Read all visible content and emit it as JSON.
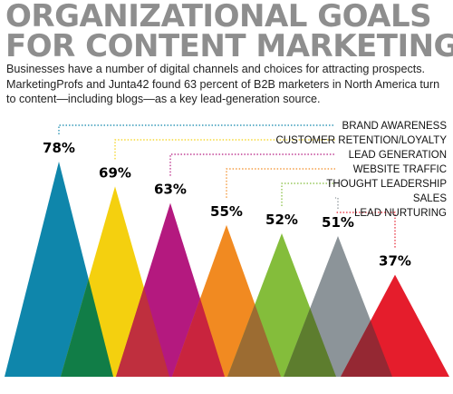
{
  "page": {
    "title_line1": "ORGANIZATIONAL GOALS",
    "title_line2": "FOR CONTENT MARKETING",
    "intro": "Businesses have a number of digital channels and choices for attracting prospects. MarketingProfs and Junta42 found 63 percent of B2B marketers in North America turn to content—including blogs—as a key lead-generation source."
  },
  "chart_data": {
    "type": "bar",
    "title": "ORGANIZATIONAL GOALS FOR CONTENT MARKETING",
    "categories": [
      "BRAND AWARENESS",
      "CUSTOMER RETENTION/LOYALTY",
      "LEAD GENERATION",
      "WEBSITE TRAFFIC",
      "THOUGHT LEADERSHIP",
      "SALES",
      "LEAD NURTURING"
    ],
    "values": [
      78,
      69,
      63,
      55,
      52,
      51,
      37
    ],
    "value_labels": [
      "78%",
      "69%",
      "63%",
      "55%",
      "52%",
      "51%",
      "37%"
    ],
    "colors": [
      "#0f86ab",
      "#f4d00f",
      "#b4197f",
      "#f18a21",
      "#84bd3b",
      "#8c9499",
      "#e51d2c"
    ],
    "overlap_colors": [
      "#117d47",
      "#bf2f3e",
      "#c9243e",
      "#9c6c32",
      "#5d7d2e",
      "#952833"
    ],
    "unit": "%",
    "ylim": [
      0,
      78
    ],
    "legend": "top-right",
    "grid": false
  }
}
